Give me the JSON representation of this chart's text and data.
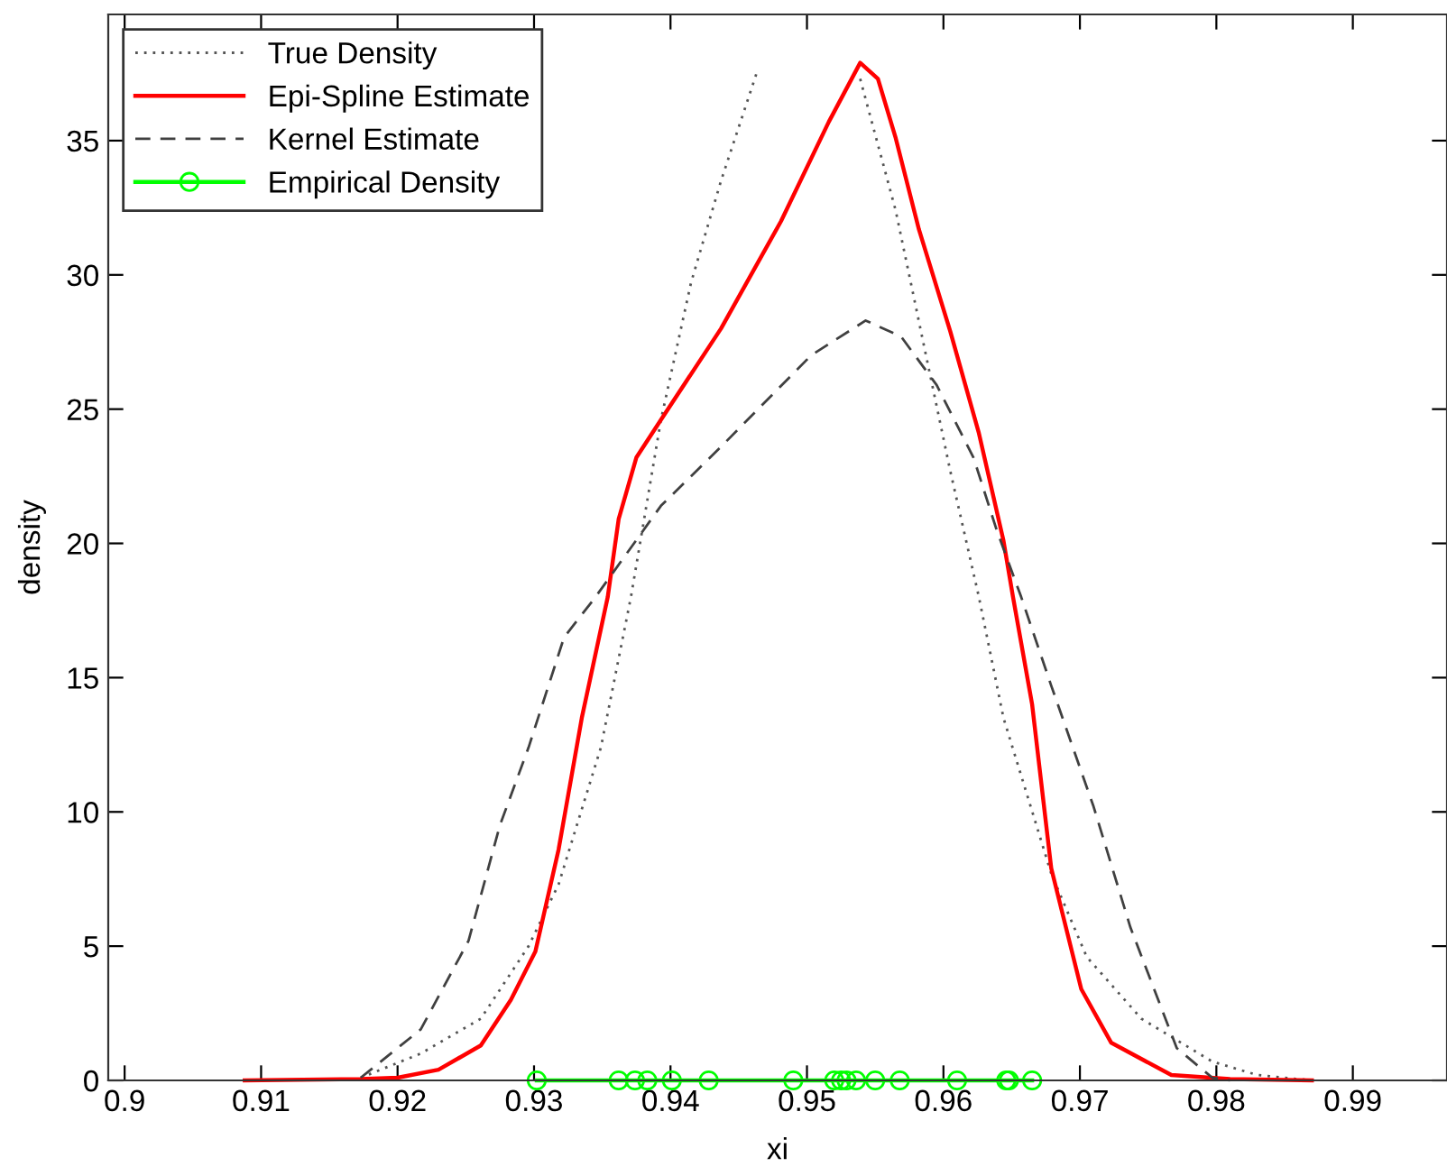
{
  "chart_data": {
    "type": "line",
    "xlabel": "xi",
    "ylabel": "density",
    "xlim": [
      0.8988,
      0.9969
    ],
    "ylim": [
      0,
      39.7
    ],
    "xticks": [
      {
        "value": 0.9,
        "label": "0.9"
      },
      {
        "value": 0.91,
        "label": "0.91"
      },
      {
        "value": 0.92,
        "label": "0.92"
      },
      {
        "value": 0.93,
        "label": "0.93"
      },
      {
        "value": 0.94,
        "label": "0.94"
      },
      {
        "value": 0.95,
        "label": "0.95"
      },
      {
        "value": 0.96,
        "label": "0.96"
      },
      {
        "value": 0.97,
        "label": "0.97"
      },
      {
        "value": 0.98,
        "label": "0.98"
      },
      {
        "value": 0.99,
        "label": "0.99"
      }
    ],
    "yticks": [
      0,
      5,
      10,
      15,
      20,
      25,
      30,
      35
    ],
    "grid": false,
    "legend": "top left",
    "series": [
      {
        "name": "True Density",
        "color": "#555555",
        "line_style": "dotted",
        "marker": "none",
        "x": [
          0.9173,
          0.9217,
          0.9261,
          0.9296,
          0.9318,
          0.9349,
          0.9371,
          0.9393,
          0.9415,
          0.9437,
          0.9463,
          0.9494,
          0.9506,
          0.9539,
          0.9565,
          0.9586,
          0.9605,
          0.9626,
          0.9644,
          0.9679,
          0.9705,
          0.9745,
          0.9797,
          0.983,
          0.987
        ],
        "values": [
          0.1,
          1.0,
          2.3,
          5.0,
          7.3,
          12.4,
          18.0,
          24.6,
          29.7,
          33.5,
          37.5,
          null,
          null,
          37.3,
          32.4,
          27.3,
          22.7,
          18.0,
          13.5,
          7.7,
          4.6,
          2.3,
          0.7,
          0.2,
          0
        ]
      },
      {
        "name": "Epi-Spline Estimate",
        "color": "#ff0000",
        "line_style": "solid",
        "marker": "none",
        "x": [
          0.9088,
          0.9173,
          0.92,
          0.923,
          0.9261,
          0.9283,
          0.9301,
          0.9318,
          0.9335,
          0.9354,
          0.9362,
          0.9375,
          0.9393,
          0.9437,
          0.9481,
          0.9516,
          0.9539,
          0.9552,
          0.9565,
          0.9582,
          0.9605,
          0.9626,
          0.9644,
          0.9651,
          0.9665,
          0.9679,
          0.9701,
          0.9723,
          0.9767,
          0.981,
          0.987
        ],
        "values": [
          0,
          0.05,
          0.1,
          0.4,
          1.3,
          3.0,
          4.8,
          8.6,
          13.5,
          18.0,
          20.9,
          23.2,
          24.6,
          28.0,
          32.0,
          35.7,
          37.9,
          37.3,
          35.1,
          31.7,
          27.9,
          24.1,
          20.1,
          18.0,
          14.0,
          7.9,
          3.4,
          1.4,
          0.2,
          0.05,
          0
        ]
      },
      {
        "name": "Kernel Estimate",
        "color": "#404040",
        "line_style": "dashed",
        "marker": "none",
        "x": [
          0.9173,
          0.9217,
          0.9252,
          0.9275,
          0.9296,
          0.9322,
          0.9345,
          0.9393,
          0.9437,
          0.9503,
          0.9543,
          0.9569,
          0.9595,
          0.9622,
          0.9639,
          0.9657,
          0.9679,
          0.971,
          0.9737,
          0.9771,
          0.9797,
          0.981
        ],
        "values": [
          0.1,
          1.9,
          5.2,
          9.5,
          12.4,
          16.5,
          18.0,
          21.4,
          23.6,
          27.0,
          28.3,
          27.7,
          25.9,
          23.2,
          20.5,
          18.0,
          14.7,
          10.2,
          5.7,
          1.2,
          0.1,
          0
        ]
      },
      {
        "name": "Empirical Density",
        "color": "#00ff00",
        "line_style": "solid",
        "marker": "circle",
        "x": [
          0.9302,
          0.9362,
          0.9374,
          0.9383,
          0.9401,
          0.9428,
          0.949,
          0.952,
          0.9525,
          0.9529,
          0.9536,
          0.955,
          0.9568,
          0.961,
          0.9646,
          0.9648,
          0.9665
        ],
        "values": [
          0,
          0,
          0,
          0,
          0,
          0,
          0,
          0,
          0,
          0,
          0,
          0,
          0,
          0,
          0,
          0,
          0
        ]
      }
    ]
  }
}
